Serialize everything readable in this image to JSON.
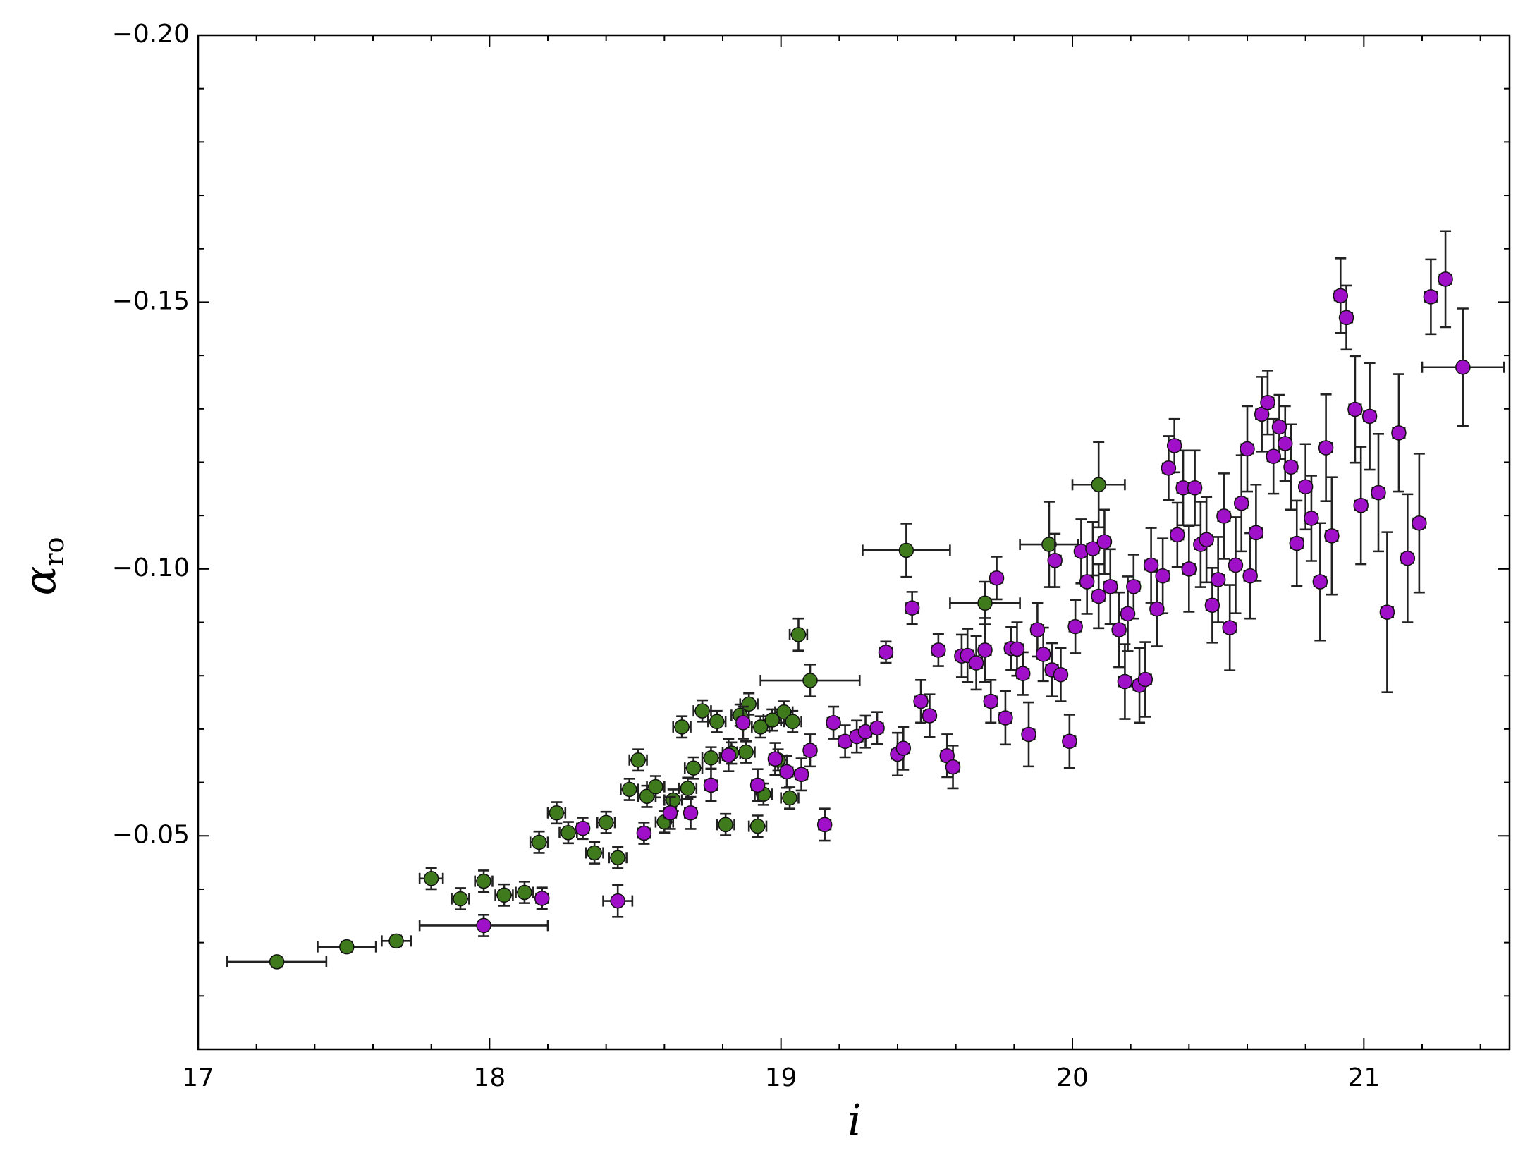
{
  "chart_data": {
    "type": "scatter",
    "xlabel": "i",
    "ylabel": "α",
    "ylabel_subscript": "ro",
    "xlim": [
      17,
      21.5
    ],
    "ylim": [
      -0.01,
      -0.2
    ],
    "xticks": [
      17,
      18,
      19,
      20,
      21
    ],
    "xticks_minor": [
      17.2,
      17.4,
      17.6,
      17.8,
      18.2,
      18.4,
      18.6,
      18.8,
      19.2,
      19.4,
      19.6,
      19.8,
      20.2,
      20.4,
      20.6,
      20.8,
      21.2,
      21.4
    ],
    "yticks": [
      {
        "value": -0.2,
        "label": "−0.20"
      },
      {
        "value": -0.15,
        "label": "−0.15"
      },
      {
        "value": -0.1,
        "label": "−0.10"
      },
      {
        "value": -0.05,
        "label": "−0.05"
      }
    ],
    "yticks_minor": [
      -0.19,
      -0.18,
      -0.17,
      -0.16,
      -0.14,
      -0.13,
      -0.12,
      -0.11,
      -0.09,
      -0.08,
      -0.07,
      -0.06,
      -0.04,
      -0.03,
      -0.02
    ],
    "series": [
      {
        "color": "#3f7a1c",
        "x": [
          17.27,
          17.51,
          17.68,
          17.8,
          17.9,
          17.98,
          18.05,
          18.12,
          18.17,
          18.23,
          18.27,
          18.36,
          18.4,
          18.44,
          18.48,
          18.51,
          18.54,
          18.57,
          18.6,
          18.63,
          18.66,
          18.68,
          18.7,
          18.73,
          18.76,
          18.78,
          18.81,
          18.83,
          18.86,
          18.88,
          18.89,
          18.92,
          18.93,
          18.94,
          18.97,
          18.99,
          19.01,
          19.03,
          19.04,
          19.06,
          19.1,
          19.43,
          19.7,
          19.92,
          20.09
        ],
        "y": [
          -0.0264,
          -0.0292,
          -0.0303,
          -0.042,
          -0.0382,
          -0.0415,
          -0.0389,
          -0.0394,
          -0.0488,
          -0.0543,
          -0.0506,
          -0.0468,
          -0.0525,
          -0.0459,
          -0.0587,
          -0.0642,
          -0.0574,
          -0.0592,
          -0.0526,
          -0.0567,
          -0.0704,
          -0.0589,
          -0.0627,
          -0.0734,
          -0.0646,
          -0.0714,
          -0.0521,
          -0.0655,
          -0.0726,
          -0.0657,
          -0.0747,
          -0.0518,
          -0.0704,
          -0.0578,
          -0.0717,
          -0.0642,
          -0.0732,
          -0.0571,
          -0.0714,
          -0.0877,
          -0.0791,
          -0.1035,
          -0.0936,
          -0.1046,
          -0.1158
        ],
        "yerr": [
          0.001,
          0.001,
          0.001,
          0.002,
          0.002,
          0.002,
          0.002,
          0.002,
          0.002,
          0.002,
          0.002,
          0.002,
          0.002,
          0.002,
          0.002,
          0.002,
          0.002,
          0.002,
          0.002,
          0.002,
          0.002,
          0.002,
          0.002,
          0.002,
          0.002,
          0.002,
          0.002,
          0.002,
          0.002,
          0.002,
          0.002,
          0.002,
          0.002,
          0.002,
          0.002,
          0.002,
          0.002,
          0.002,
          0.002,
          0.003,
          0.003,
          0.005,
          0.004,
          0.008,
          0.008
        ],
        "xerr": [
          0.17,
          0.1,
          0.05,
          0.04,
          0.03,
          0.03,
          0.03,
          0.03,
          0.03,
          0.03,
          0.03,
          0.03,
          0.03,
          0.03,
          0.03,
          0.03,
          0.03,
          0.03,
          0.03,
          0.03,
          0.03,
          0.03,
          0.03,
          0.03,
          0.03,
          0.03,
          0.03,
          0.03,
          0.03,
          0.03,
          0.03,
          0.03,
          0.03,
          0.03,
          0.03,
          0.03,
          0.03,
          0.03,
          0.03,
          0.03,
          0.17,
          0.15,
          0.12,
          0.1,
          0.09
        ]
      },
      {
        "color": "#a010c8",
        "x": [
          17.98,
          18.18,
          18.32,
          18.44,
          18.53,
          18.62,
          18.69,
          18.76,
          18.82,
          18.87,
          18.92,
          18.98,
          19.02,
          19.07,
          19.1,
          19.15,
          19.18,
          19.22,
          19.26,
          19.29,
          19.33,
          19.36,
          19.4,
          19.42,
          19.45,
          19.48,
          19.51,
          19.54,
          19.57,
          19.59,
          19.62,
          19.64,
          19.67,
          19.7,
          19.72,
          19.74,
          19.77,
          19.79,
          19.81,
          19.83,
          19.85,
          19.88,
          19.9,
          19.93,
          19.94,
          19.96,
          19.99,
          20.01,
          20.03,
          20.05,
          20.07,
          20.09,
          20.11,
          20.13,
          20.16,
          20.18,
          20.19,
          20.21,
          20.23,
          20.25,
          20.27,
          20.29,
          20.31,
          20.33,
          20.35,
          20.36,
          20.38,
          20.4,
          20.42,
          20.44,
          20.46,
          20.48,
          20.5,
          20.52,
          20.54,
          20.56,
          20.58,
          20.6,
          20.61,
          20.63,
          20.65,
          20.67,
          20.69,
          20.71,
          20.73,
          20.75,
          20.77,
          20.8,
          20.82,
          20.85,
          20.87,
          20.89,
          20.92,
          20.94,
          20.97,
          20.99,
          21.02,
          21.05,
          21.08,
          21.12,
          21.15,
          21.19,
          21.23,
          21.28,
          21.34
        ],
        "y": [
          -0.0332,
          -0.0383,
          -0.0514,
          -0.0378,
          -0.0505,
          -0.0543,
          -0.0543,
          -0.0595,
          -0.0651,
          -0.0712,
          -0.0595,
          -0.0644,
          -0.062,
          -0.0615,
          -0.066,
          -0.0521,
          -0.0712,
          -0.0677,
          -0.0686,
          -0.0695,
          -0.0702,
          -0.0844,
          -0.0653,
          -0.0664,
          -0.0927,
          -0.0752,
          -0.0725,
          -0.0848,
          -0.065,
          -0.0629,
          -0.0837,
          -0.0838,
          -0.0824,
          -0.0848,
          -0.0752,
          -0.0983,
          -0.0721,
          -0.0851,
          -0.085,
          -0.0804,
          -0.069,
          -0.0886,
          -0.084,
          -0.0811,
          -0.1016,
          -0.0802,
          -0.0677,
          -0.0892,
          -0.1033,
          -0.0976,
          -0.1038,
          -0.0949,
          -0.1051,
          -0.0967,
          -0.0886,
          -0.0789,
          -0.0916,
          -0.0967,
          -0.0782,
          -0.0793,
          -0.1007,
          -0.0925,
          -0.0987,
          -0.1189,
          -0.1231,
          -0.1064,
          -0.1152,
          -0.1,
          -0.1152,
          -0.1046,
          -0.1055,
          -0.0932,
          -0.098,
          -0.1099,
          -0.089,
          -0.1007,
          -0.1123,
          -0.1225,
          -0.0987,
          -0.1068,
          -0.129,
          -0.1312,
          -0.1211,
          -0.1266,
          -0.1235,
          -0.1191,
          -0.1048,
          -0.1154,
          -0.1095,
          -0.0976,
          -0.1227,
          -0.1062,
          -0.1512,
          -0.1471,
          -0.1299,
          -0.1119,
          -0.1286,
          -0.1143,
          -0.0919,
          -0.1255,
          -0.102,
          -0.1086,
          -0.151,
          -0.1543,
          -0.1378
        ],
        "yerr": [
          0.002,
          0.002,
          0.002,
          0.003,
          0.002,
          0.003,
          0.003,
          0.003,
          0.003,
          0.003,
          0.003,
          0.003,
          0.003,
          0.003,
          0.003,
          0.003,
          0.003,
          0.003,
          0.003,
          0.003,
          0.003,
          0.002,
          0.004,
          0.004,
          0.003,
          0.004,
          0.004,
          0.003,
          0.004,
          0.004,
          0.004,
          0.005,
          0.005,
          0.006,
          0.004,
          0.004,
          0.005,
          0.004,
          0.005,
          0.004,
          0.006,
          0.005,
          0.005,
          0.005,
          0.005,
          0.005,
          0.005,
          0.005,
          0.006,
          0.006,
          0.005,
          0.006,
          0.006,
          0.007,
          0.007,
          0.007,
          0.007,
          0.006,
          0.007,
          0.007,
          0.007,
          0.007,
          0.007,
          0.006,
          0.005,
          0.006,
          0.007,
          0.008,
          0.007,
          0.008,
          0.008,
          0.007,
          0.008,
          0.008,
          0.008,
          0.009,
          0.009,
          0.008,
          0.008,
          0.009,
          0.007,
          0.006,
          0.007,
          0.006,
          0.007,
          0.008,
          0.008,
          0.008,
          0.008,
          0.011,
          0.01,
          0.011,
          0.007,
          0.006,
          0.01,
          0.011,
          0.01,
          0.011,
          0.015,
          0.011,
          0.012,
          0.013,
          0.007,
          0.009,
          0.011
        ],
        "xerr": [
          0.22,
          0.02,
          0.02,
          0.05,
          0.02,
          0.02,
          0.02,
          0.02,
          0.02,
          0.02,
          0.02,
          0.02,
          0.02,
          0.02,
          0.02,
          0.02,
          0.02,
          0.02,
          0.02,
          0.02,
          0.02,
          0.02,
          0.02,
          0.02,
          0.02,
          0.02,
          0.02,
          0.02,
          0.02,
          0.02,
          0.02,
          0.02,
          0.02,
          0.02,
          0.02,
          0.02,
          0.02,
          0.02,
          0.02,
          0.02,
          0.02,
          0.02,
          0.02,
          0.02,
          0.02,
          0.02,
          0.02,
          0.02,
          0.02,
          0.02,
          0.02,
          0.02,
          0.02,
          0.02,
          0.02,
          0.02,
          0.02,
          0.02,
          0.02,
          0.02,
          0.02,
          0.02,
          0.02,
          0.02,
          0.02,
          0.02,
          0.02,
          0.02,
          0.02,
          0.02,
          0.02,
          0.02,
          0.02,
          0.02,
          0.02,
          0.02,
          0.02,
          0.02,
          0.02,
          0.02,
          0.02,
          0.02,
          0.02,
          0.02,
          0.02,
          0.02,
          0.02,
          0.02,
          0.02,
          0.02,
          0.02,
          0.02,
          0.02,
          0.02,
          0.02,
          0.02,
          0.02,
          0.02,
          0.02,
          0.02,
          0.02,
          0.02,
          0.02,
          0.02,
          0.14
        ]
      }
    ]
  }
}
